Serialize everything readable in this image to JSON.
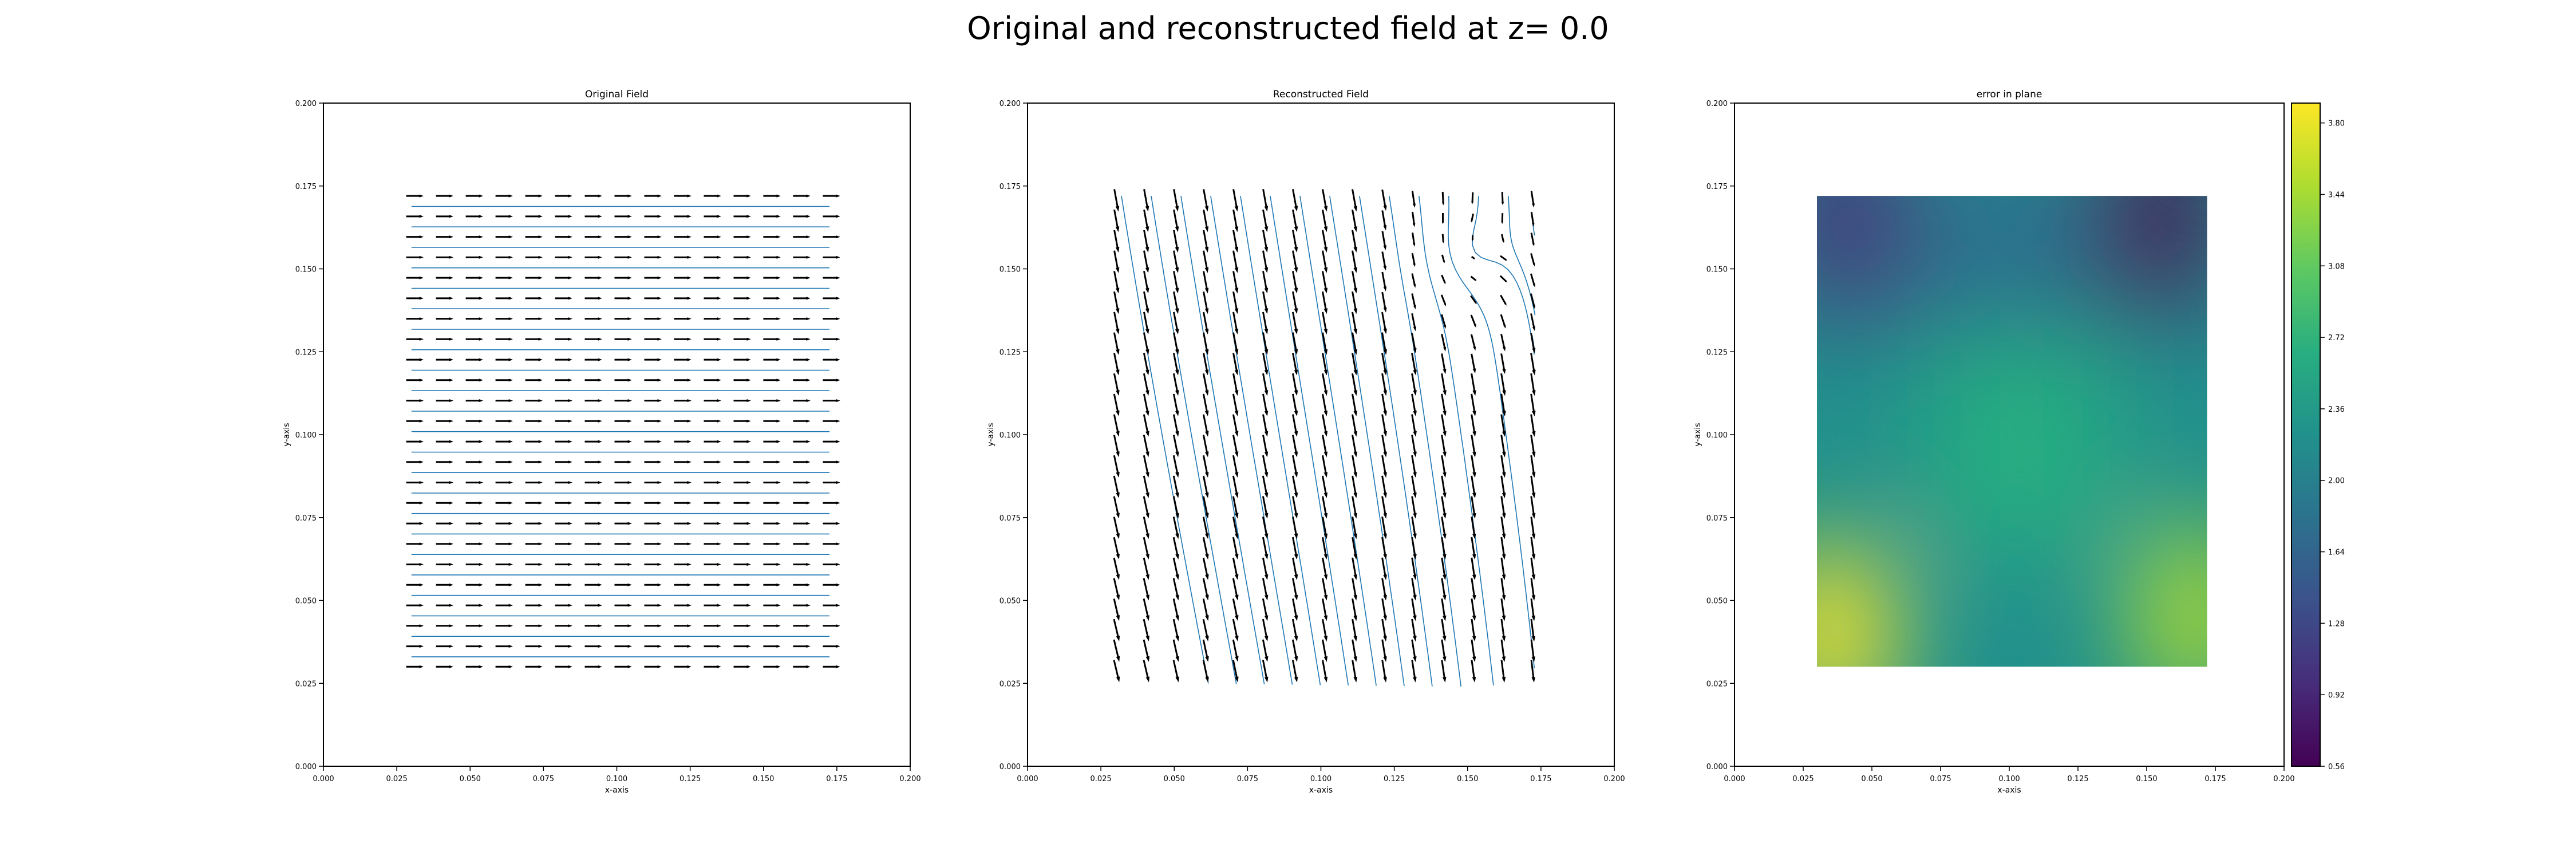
{
  "title": "Original and reconstructed field at z= 0.0",
  "chart_data": [
    {
      "type": "quiver",
      "title": "Original Field",
      "xlabel": "x-axis",
      "ylabel": "y-axis",
      "xlim": [
        0.0,
        0.2
      ],
      "ylim": [
        0.0,
        0.2
      ],
      "xticks": [
        "0.000",
        "0.025",
        "0.050",
        "0.075",
        "0.100",
        "0.125",
        "0.150",
        "0.175",
        "0.200"
      ],
      "yticks": [
        "0.000",
        "0.025",
        "0.050",
        "0.075",
        "0.100",
        "0.125",
        "0.150",
        "0.175",
        "0.200"
      ],
      "grid_x": [
        0.03,
        0.172,
        15
      ],
      "grid_y": [
        0.03,
        0.172,
        24
      ],
      "field": "uniform +x direction",
      "arrow_color": "#000000",
      "streamline_color": "#1f77b4"
    },
    {
      "type": "quiver",
      "title": "Reconstructed Field",
      "xlabel": "x-axis",
      "ylabel": "y-axis",
      "xlim": [
        0.0,
        0.2
      ],
      "ylim": [
        0.0,
        0.2
      ],
      "xticks": [
        "0.000",
        "0.025",
        "0.050",
        "0.075",
        "0.100",
        "0.125",
        "0.150",
        "0.175",
        "0.200"
      ],
      "yticks": [
        "0.000",
        "0.025",
        "0.050",
        "0.075",
        "0.100",
        "0.125",
        "0.150",
        "0.175",
        "0.200"
      ],
      "grid_x": [
        0.03,
        0.172,
        15
      ],
      "grid_y": [
        0.03,
        0.172,
        24
      ],
      "field": "predominantly -y direction, curling near top-right",
      "arrow_color": "#000000",
      "streamline_color": "#1f77b4"
    },
    {
      "type": "heatmap",
      "title": "error in plane",
      "xlabel": "x-axis",
      "ylabel": "y-axis",
      "xlim": [
        0.0,
        0.2
      ],
      "ylim": [
        0.0,
        0.2
      ],
      "xticks": [
        "0.000",
        "0.025",
        "0.050",
        "0.075",
        "0.100",
        "0.125",
        "0.150",
        "0.175",
        "0.200"
      ],
      "yticks": [
        "0.000",
        "0.025",
        "0.050",
        "0.075",
        "0.100",
        "0.125",
        "0.150",
        "0.175",
        "0.200"
      ],
      "extent": [
        0.03,
        0.172,
        0.03,
        0.172
      ],
      "colormap": "viridis",
      "colorbar_ticks": [
        "0.56",
        "0.92",
        "1.28",
        "1.64",
        "2.00",
        "2.36",
        "2.72",
        "3.08",
        "3.44",
        "3.80"
      ],
      "vmin": 0.56,
      "vmax": 3.9,
      "hotspots": [
        {
          "x": 0.035,
          "y": 0.04,
          "value": 3.9
        },
        {
          "x": 0.168,
          "y": 0.045,
          "value": 3.3
        },
        {
          "x": 0.155,
          "y": 0.165,
          "value": 0.56
        },
        {
          "x": 0.04,
          "y": 0.165,
          "value": 1.0
        }
      ]
    }
  ]
}
